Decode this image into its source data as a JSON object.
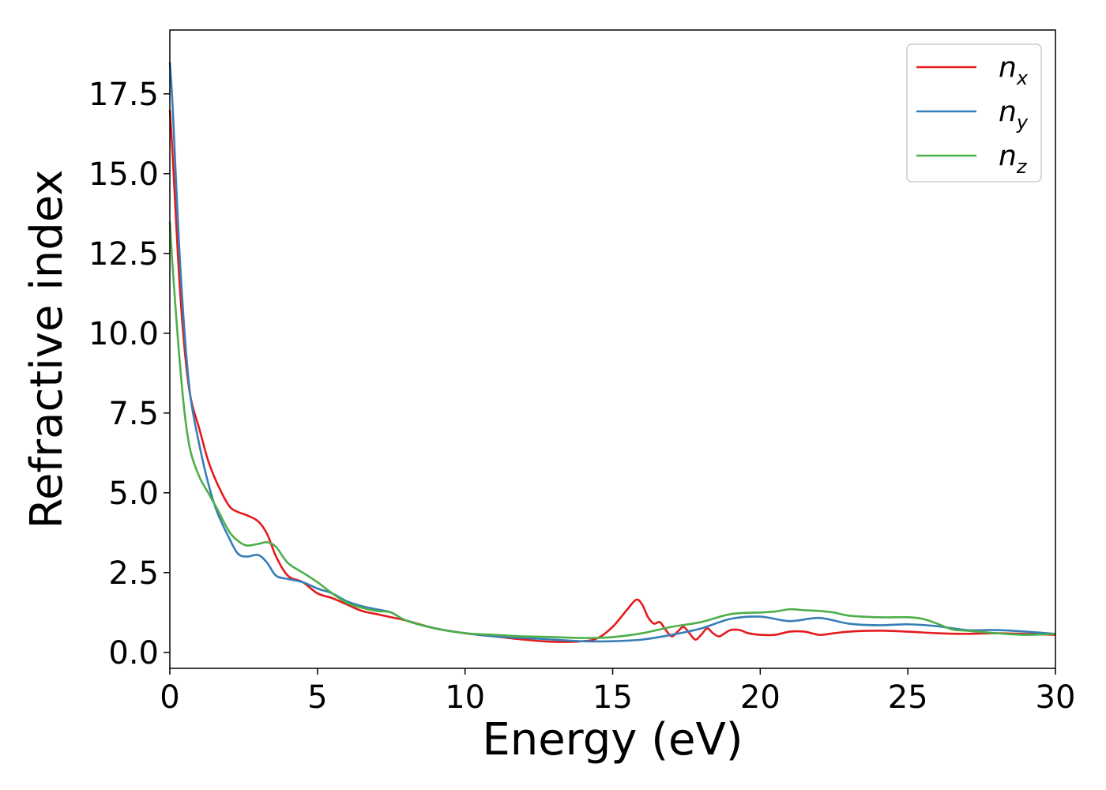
{
  "chart_data": {
    "type": "line",
    "xlabel": "Energy (eV)",
    "ylabel": "Refractive index",
    "xlim": [
      0,
      30
    ],
    "ylim": [
      -0.5,
      19.5
    ],
    "xticks": [
      0,
      5,
      10,
      15,
      20,
      25,
      30
    ],
    "xtick_labels": [
      "0",
      "5",
      "10",
      "15",
      "20",
      "25",
      "30"
    ],
    "yticks": [
      0.0,
      2.5,
      5.0,
      7.5,
      10.0,
      12.5,
      15.0,
      17.5
    ],
    "ytick_labels": [
      "0.0",
      "2.5",
      "5.0",
      "7.5",
      "10.0",
      "12.5",
      "15.0",
      "17.5"
    ],
    "grid": false,
    "legend_position": "top-right",
    "series": [
      {
        "name": "n_x",
        "label_base": "n",
        "label_sub": "x",
        "color": "#e41a1c",
        "x": [
          0,
          0.1,
          0.3,
          0.5,
          0.7,
          1.0,
          1.3,
          1.6,
          2.0,
          2.3,
          2.6,
          3.0,
          3.3,
          3.6,
          4.0,
          4.5,
          5.0,
          5.5,
          6.0,
          6.5,
          7.0,
          7.5,
          8.0,
          9.0,
          10.0,
          11.0,
          12.0,
          13.0,
          14.0,
          14.5,
          15.0,
          15.5,
          15.8,
          16.0,
          16.2,
          16.4,
          16.6,
          16.8,
          17.0,
          17.2,
          17.4,
          17.6,
          17.8,
          18.0,
          18.2,
          18.4,
          18.6,
          18.8,
          19.0,
          19.3,
          19.6,
          20.0,
          20.5,
          21.0,
          21.5,
          22.0,
          22.5,
          23.0,
          24.0,
          25.0,
          26.0,
          27.0,
          28.0,
          29.0,
          30.0
        ],
        "y": [
          17.0,
          15.5,
          12.0,
          9.5,
          8.0,
          7.0,
          6.0,
          5.3,
          4.6,
          4.4,
          4.3,
          4.1,
          3.7,
          3.0,
          2.4,
          2.2,
          1.85,
          1.7,
          1.5,
          1.3,
          1.2,
          1.1,
          1.0,
          0.75,
          0.6,
          0.5,
          0.4,
          0.33,
          0.35,
          0.45,
          0.8,
          1.35,
          1.65,
          1.5,
          1.1,
          0.9,
          0.95,
          0.7,
          0.5,
          0.65,
          0.8,
          0.6,
          0.4,
          0.55,
          0.75,
          0.6,
          0.5,
          0.6,
          0.7,
          0.7,
          0.6,
          0.55,
          0.55,
          0.65,
          0.65,
          0.55,
          0.6,
          0.65,
          0.68,
          0.65,
          0.6,
          0.58,
          0.6,
          0.58,
          0.55
        ]
      },
      {
        "name": "n_y",
        "label_base": "n",
        "label_sub": "y",
        "color": "#377eb8",
        "x": [
          0,
          0.1,
          0.3,
          0.5,
          0.7,
          1.0,
          1.3,
          1.6,
          2.0,
          2.3,
          2.6,
          3.0,
          3.3,
          3.6,
          4.0,
          4.5,
          5.0,
          5.5,
          6.0,
          6.5,
          7.0,
          7.5,
          8.0,
          9.0,
          10.0,
          11.0,
          12.0,
          13.0,
          14.0,
          15.0,
          16.0,
          17.0,
          18.0,
          19.0,
          20.0,
          21.0,
          22.0,
          23.0,
          24.0,
          25.0,
          26.0,
          27.0,
          28.0,
          29.0,
          30.0
        ],
        "y": [
          18.5,
          17.0,
          13.0,
          10.0,
          8.0,
          6.5,
          5.3,
          4.4,
          3.6,
          3.1,
          3.0,
          3.05,
          2.8,
          2.4,
          2.3,
          2.2,
          2.0,
          1.85,
          1.6,
          1.45,
          1.35,
          1.25,
          1.0,
          0.75,
          0.6,
          0.5,
          0.45,
          0.4,
          0.35,
          0.35,
          0.4,
          0.55,
          0.75,
          1.05,
          1.12,
          0.98,
          1.08,
          0.9,
          0.85,
          0.88,
          0.82,
          0.7,
          0.7,
          0.65,
          0.58
        ]
      },
      {
        "name": "n_z",
        "label_base": "n",
        "label_sub": "z",
        "color": "#4daf4a",
        "x": [
          0,
          0.1,
          0.3,
          0.5,
          0.7,
          1.0,
          1.3,
          1.6,
          2.0,
          2.3,
          2.6,
          3.0,
          3.3,
          3.6,
          4.0,
          4.5,
          5.0,
          5.5,
          6.0,
          6.5,
          7.0,
          7.5,
          8.0,
          9.0,
          10.0,
          11.0,
          12.0,
          13.0,
          14.0,
          15.0,
          16.0,
          17.0,
          18.0,
          19.0,
          20.0,
          20.5,
          21.0,
          21.5,
          22.0,
          22.5,
          23.0,
          24.0,
          25.0,
          25.5,
          26.0,
          26.5,
          27.0,
          28.0,
          29.0,
          30.0
        ],
        "y": [
          13.5,
          12.0,
          9.5,
          7.5,
          6.3,
          5.5,
          5.0,
          4.5,
          3.8,
          3.5,
          3.35,
          3.4,
          3.45,
          3.3,
          2.8,
          2.5,
          2.2,
          1.85,
          1.55,
          1.4,
          1.3,
          1.25,
          1.0,
          0.75,
          0.6,
          0.55,
          0.5,
          0.48,
          0.45,
          0.48,
          0.6,
          0.8,
          0.95,
          1.2,
          1.25,
          1.28,
          1.35,
          1.32,
          1.3,
          1.25,
          1.15,
          1.1,
          1.1,
          1.05,
          0.9,
          0.72,
          0.68,
          0.6,
          0.55,
          0.58
        ]
      }
    ]
  }
}
